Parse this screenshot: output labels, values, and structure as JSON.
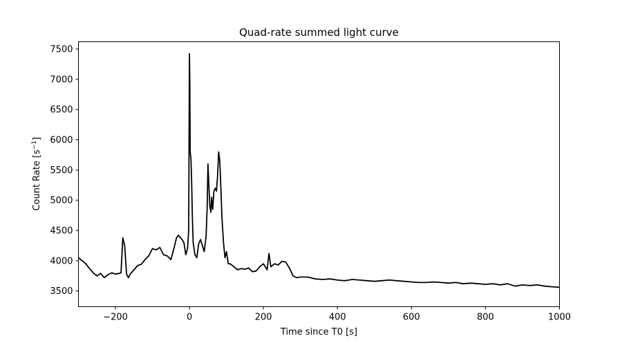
{
  "chart_data": {
    "type": "line",
    "title": "Quad-rate summed light curve",
    "xlabel": "Time since T0 [s]",
    "ylabel_main": "Count Rate [s",
    "ylabel_sup": "−1",
    "ylabel_end": "]",
    "xlim": [
      -300,
      1000
    ],
    "ylim": [
      3240,
      7620
    ],
    "x_ticks": [
      -200,
      0,
      200,
      400,
      600,
      800,
      1000
    ],
    "x_tick_labels": [
      "−200",
      "0",
      "200",
      "400",
      "600",
      "800",
      "1000"
    ],
    "y_ticks": [
      3500,
      4000,
      4500,
      5000,
      5500,
      6000,
      6500,
      7000,
      7500
    ],
    "y_tick_labels": [
      "3500",
      "4000",
      "4500",
      "5000",
      "5500",
      "6000",
      "6500",
      "7000",
      "7500"
    ],
    "grid": false,
    "series": [
      {
        "color": "#000000",
        "x": [
          -300,
          -290,
          -280,
          -270,
          -260,
          -250,
          -240,
          -230,
          -220,
          -210,
          -200,
          -190,
          -185,
          -180,
          -175,
          -170,
          -165,
          -160,
          -150,
          -140,
          -130,
          -120,
          -110,
          -100,
          -90,
          -80,
          -70,
          -60,
          -50,
          -40,
          -35,
          -30,
          -20,
          -15,
          -10,
          -5,
          -2,
          0,
          1,
          2,
          4,
          6,
          8,
          10,
          15,
          20,
          25,
          30,
          35,
          40,
          45,
          48,
          50,
          52,
          55,
          58,
          60,
          63,
          66,
          70,
          73,
          76,
          79,
          82,
          85,
          88,
          92,
          96,
          100,
          105,
          110,
          120,
          130,
          140,
          150,
          160,
          170,
          180,
          190,
          200,
          210,
          215,
          220,
          230,
          240,
          250,
          260,
          270,
          280,
          290,
          300,
          320,
          340,
          360,
          380,
          400,
          420,
          440,
          460,
          480,
          500,
          520,
          540,
          560,
          580,
          600,
          620,
          640,
          660,
          680,
          700,
          720,
          740,
          760,
          780,
          800,
          820,
          840,
          860,
          880,
          900,
          920,
          940,
          960,
          980,
          1000
        ],
        "y": [
          4050,
          4000,
          3950,
          3870,
          3800,
          3750,
          3790,
          3720,
          3770,
          3800,
          3780,
          3790,
          3800,
          4380,
          4250,
          3780,
          3720,
          3780,
          3850,
          3920,
          3940,
          4020,
          4080,
          4200,
          4180,
          4220,
          4100,
          4080,
          4020,
          4250,
          4380,
          4420,
          4350,
          4300,
          4100,
          4200,
          4500,
          7420,
          6900,
          5800,
          5680,
          5300,
          4700,
          4300,
          4100,
          4050,
          4280,
          4350,
          4250,
          4150,
          4400,
          4900,
          5600,
          5300,
          4900,
          4800,
          5050,
          4850,
          5150,
          5200,
          5150,
          5400,
          5800,
          5650,
          5200,
          4700,
          4300,
          4050,
          4150,
          3950,
          3950,
          3900,
          3850,
          3870,
          3860,
          3880,
          3820,
          3830,
          3900,
          3950,
          3850,
          4120,
          3900,
          3950,
          3930,
          3990,
          3980,
          3880,
          3750,
          3720,
          3730,
          3730,
          3700,
          3690,
          3700,
          3680,
          3670,
          3690,
          3680,
          3670,
          3660,
          3670,
          3680,
          3670,
          3660,
          3650,
          3640,
          3640,
          3650,
          3640,
          3630,
          3640,
          3620,
          3630,
          3620,
          3610,
          3620,
          3600,
          3620,
          3580,
          3600,
          3590,
          3600,
          3580,
          3570,
          3560
        ]
      }
    ]
  }
}
